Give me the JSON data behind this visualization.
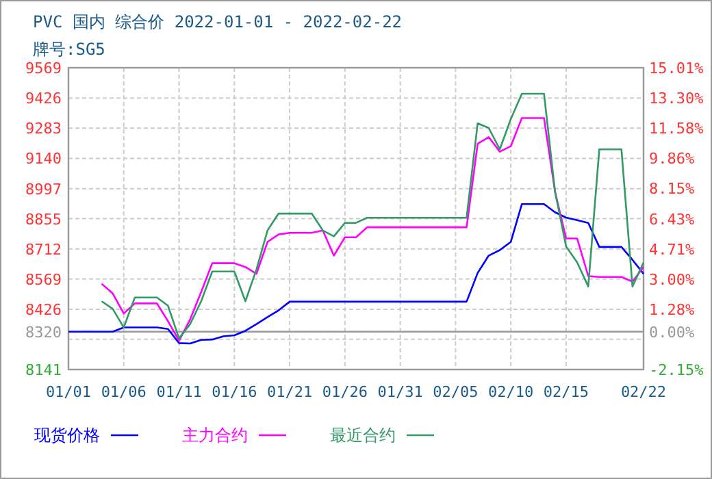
{
  "chart_data": {
    "type": "line",
    "title": "PVC 国内 综合价 2022-01-01 - 2022-02-22",
    "subtitle": "牌号:SG5",
    "x": [
      "2022-01-01",
      "2022-01-02",
      "2022-01-03",
      "2022-01-04",
      "2022-01-05",
      "2022-01-06",
      "2022-01-07",
      "2022-01-08",
      "2022-01-09",
      "2022-01-10",
      "2022-01-11",
      "2022-01-12",
      "2022-01-13",
      "2022-01-14",
      "2022-01-15",
      "2022-01-16",
      "2022-01-17",
      "2022-01-18",
      "2022-01-19",
      "2022-01-20",
      "2022-01-21",
      "2022-01-22",
      "2022-01-23",
      "2022-01-24",
      "2022-01-25",
      "2022-01-26",
      "2022-01-27",
      "2022-01-28",
      "2022-01-29",
      "2022-01-30",
      "2022-01-31",
      "2022-02-01",
      "2022-02-02",
      "2022-02-03",
      "2022-02-04",
      "2022-02-05",
      "2022-02-06",
      "2022-02-07",
      "2022-02-08",
      "2022-02-09",
      "2022-02-10",
      "2022-02-11",
      "2022-02-12",
      "2022-02-13",
      "2022-02-14",
      "2022-02-15",
      "2022-02-16",
      "2022-02-17",
      "2022-02-18",
      "2022-02-19",
      "2022-02-20",
      "2022-02-21",
      "2022-02-22"
    ],
    "series": [
      {
        "name": "现货价格",
        "color": "#0000ff",
        "values": [
          8320,
          8320,
          8320,
          8320,
          8320,
          8340,
          8340,
          8340,
          8340,
          8333,
          8266,
          8264,
          8281,
          8283,
          8298,
          8303,
          8324,
          8356,
          8389,
          8421,
          8462,
          8462,
          8462,
          8462,
          8462,
          8462,
          8462,
          8462,
          8462,
          8462,
          8462,
          8462,
          8462,
          8462,
          8462,
          8462,
          8462,
          8598,
          8680,
          8706,
          8745,
          8924,
          8924,
          8924,
          8885,
          8860,
          8848,
          8835,
          8721,
          8721,
          8721,
          8660,
          8594
        ]
      },
      {
        "name": "主力合约",
        "color": "#ff00ff",
        "values": [
          null,
          null,
          null,
          8547,
          8501,
          8406,
          8454,
          8454,
          8454,
          8370,
          8277,
          8378,
          8508,
          8644,
          8644,
          8644,
          8626,
          8594,
          8745,
          8780,
          8788,
          8788,
          8788,
          8799,
          8680,
          8767,
          8767,
          8814,
          8814,
          8814,
          8814,
          8814,
          8814,
          8814,
          8814,
          8814,
          8814,
          9209,
          9241,
          9172,
          9198,
          9331,
          9331,
          9331,
          8982,
          8761,
          8761,
          8583,
          8579,
          8579,
          8579,
          8557,
          8626
        ]
      },
      {
        "name": "最近合约",
        "color": "#339966",
        "values": [
          null,
          null,
          null,
          8464,
          8428,
          8340,
          8482,
          8482,
          8482,
          8443,
          8288,
          8356,
          8464,
          8605,
          8605,
          8605,
          8464,
          8615,
          8799,
          8879,
          8879,
          8879,
          8879,
          8799,
          8771,
          8835,
          8835,
          8859,
          8859,
          8859,
          8859,
          8859,
          8859,
          8859,
          8859,
          8859,
          8859,
          9306,
          9284,
          9183,
          9327,
          9446,
          9446,
          9446,
          8982,
          8723,
          8648,
          8534,
          9183,
          9183,
          9183,
          8534,
          8648
        ]
      }
    ],
    "xlim": [
      "2022-01-01",
      "2022-02-22"
    ],
    "xticks": [
      {
        "value": "2022-01-01",
        "label": "01/01"
      },
      {
        "value": "2022-01-06",
        "label": "01/06"
      },
      {
        "value": "2022-01-11",
        "label": "01/11"
      },
      {
        "value": "2022-01-16",
        "label": "01/16"
      },
      {
        "value": "2022-01-21",
        "label": "01/21"
      },
      {
        "value": "2022-01-26",
        "label": "01/26"
      },
      {
        "value": "2022-01-31",
        "label": "01/31"
      },
      {
        "value": "2022-02-05",
        "label": "02/05"
      },
      {
        "value": "2022-02-10",
        "label": "02/10"
      },
      {
        "value": "2022-02-15",
        "label": "02/15"
      },
      {
        "value": "2022-02-22",
        "label": "02/22"
      }
    ],
    "ylim": [
      8141,
      9569
    ],
    "yticks": [
      8141,
      {
        "value": 8284,
        "label": null
      },
      8320,
      8426,
      8569,
      8712,
      8855,
      8997,
      9140,
      9283,
      9426,
      9569
    ],
    "y2lim": [
      -2.15,
      15.01
    ],
    "y2ticks": [
      {
        "value": -2.15,
        "label": "-2.15%"
      },
      {
        "value": 0,
        "label": "0.00%"
      },
      {
        "value": 1.28,
        "label": "1.28%"
      },
      {
        "value": 3.0,
        "label": "3.00%"
      },
      {
        "value": 4.71,
        "label": "4.71%"
      },
      {
        "value": 6.43,
        "label": "6.43%"
      },
      {
        "value": 8.15,
        "label": "8.15%"
      },
      {
        "value": 9.86,
        "label": "9.86%"
      },
      {
        "value": 11.58,
        "label": "11.58%"
      },
      {
        "value": 13.3,
        "label": "13.30%"
      },
      {
        "value": 15.01,
        "label": "15.01%"
      }
    ],
    "ref_lines": [
      {
        "axis": "y2",
        "value": 0,
        "color": "#999999"
      }
    ],
    "grid": true,
    "legend": "bottom",
    "marker": "none",
    "line_style": "solid"
  }
}
